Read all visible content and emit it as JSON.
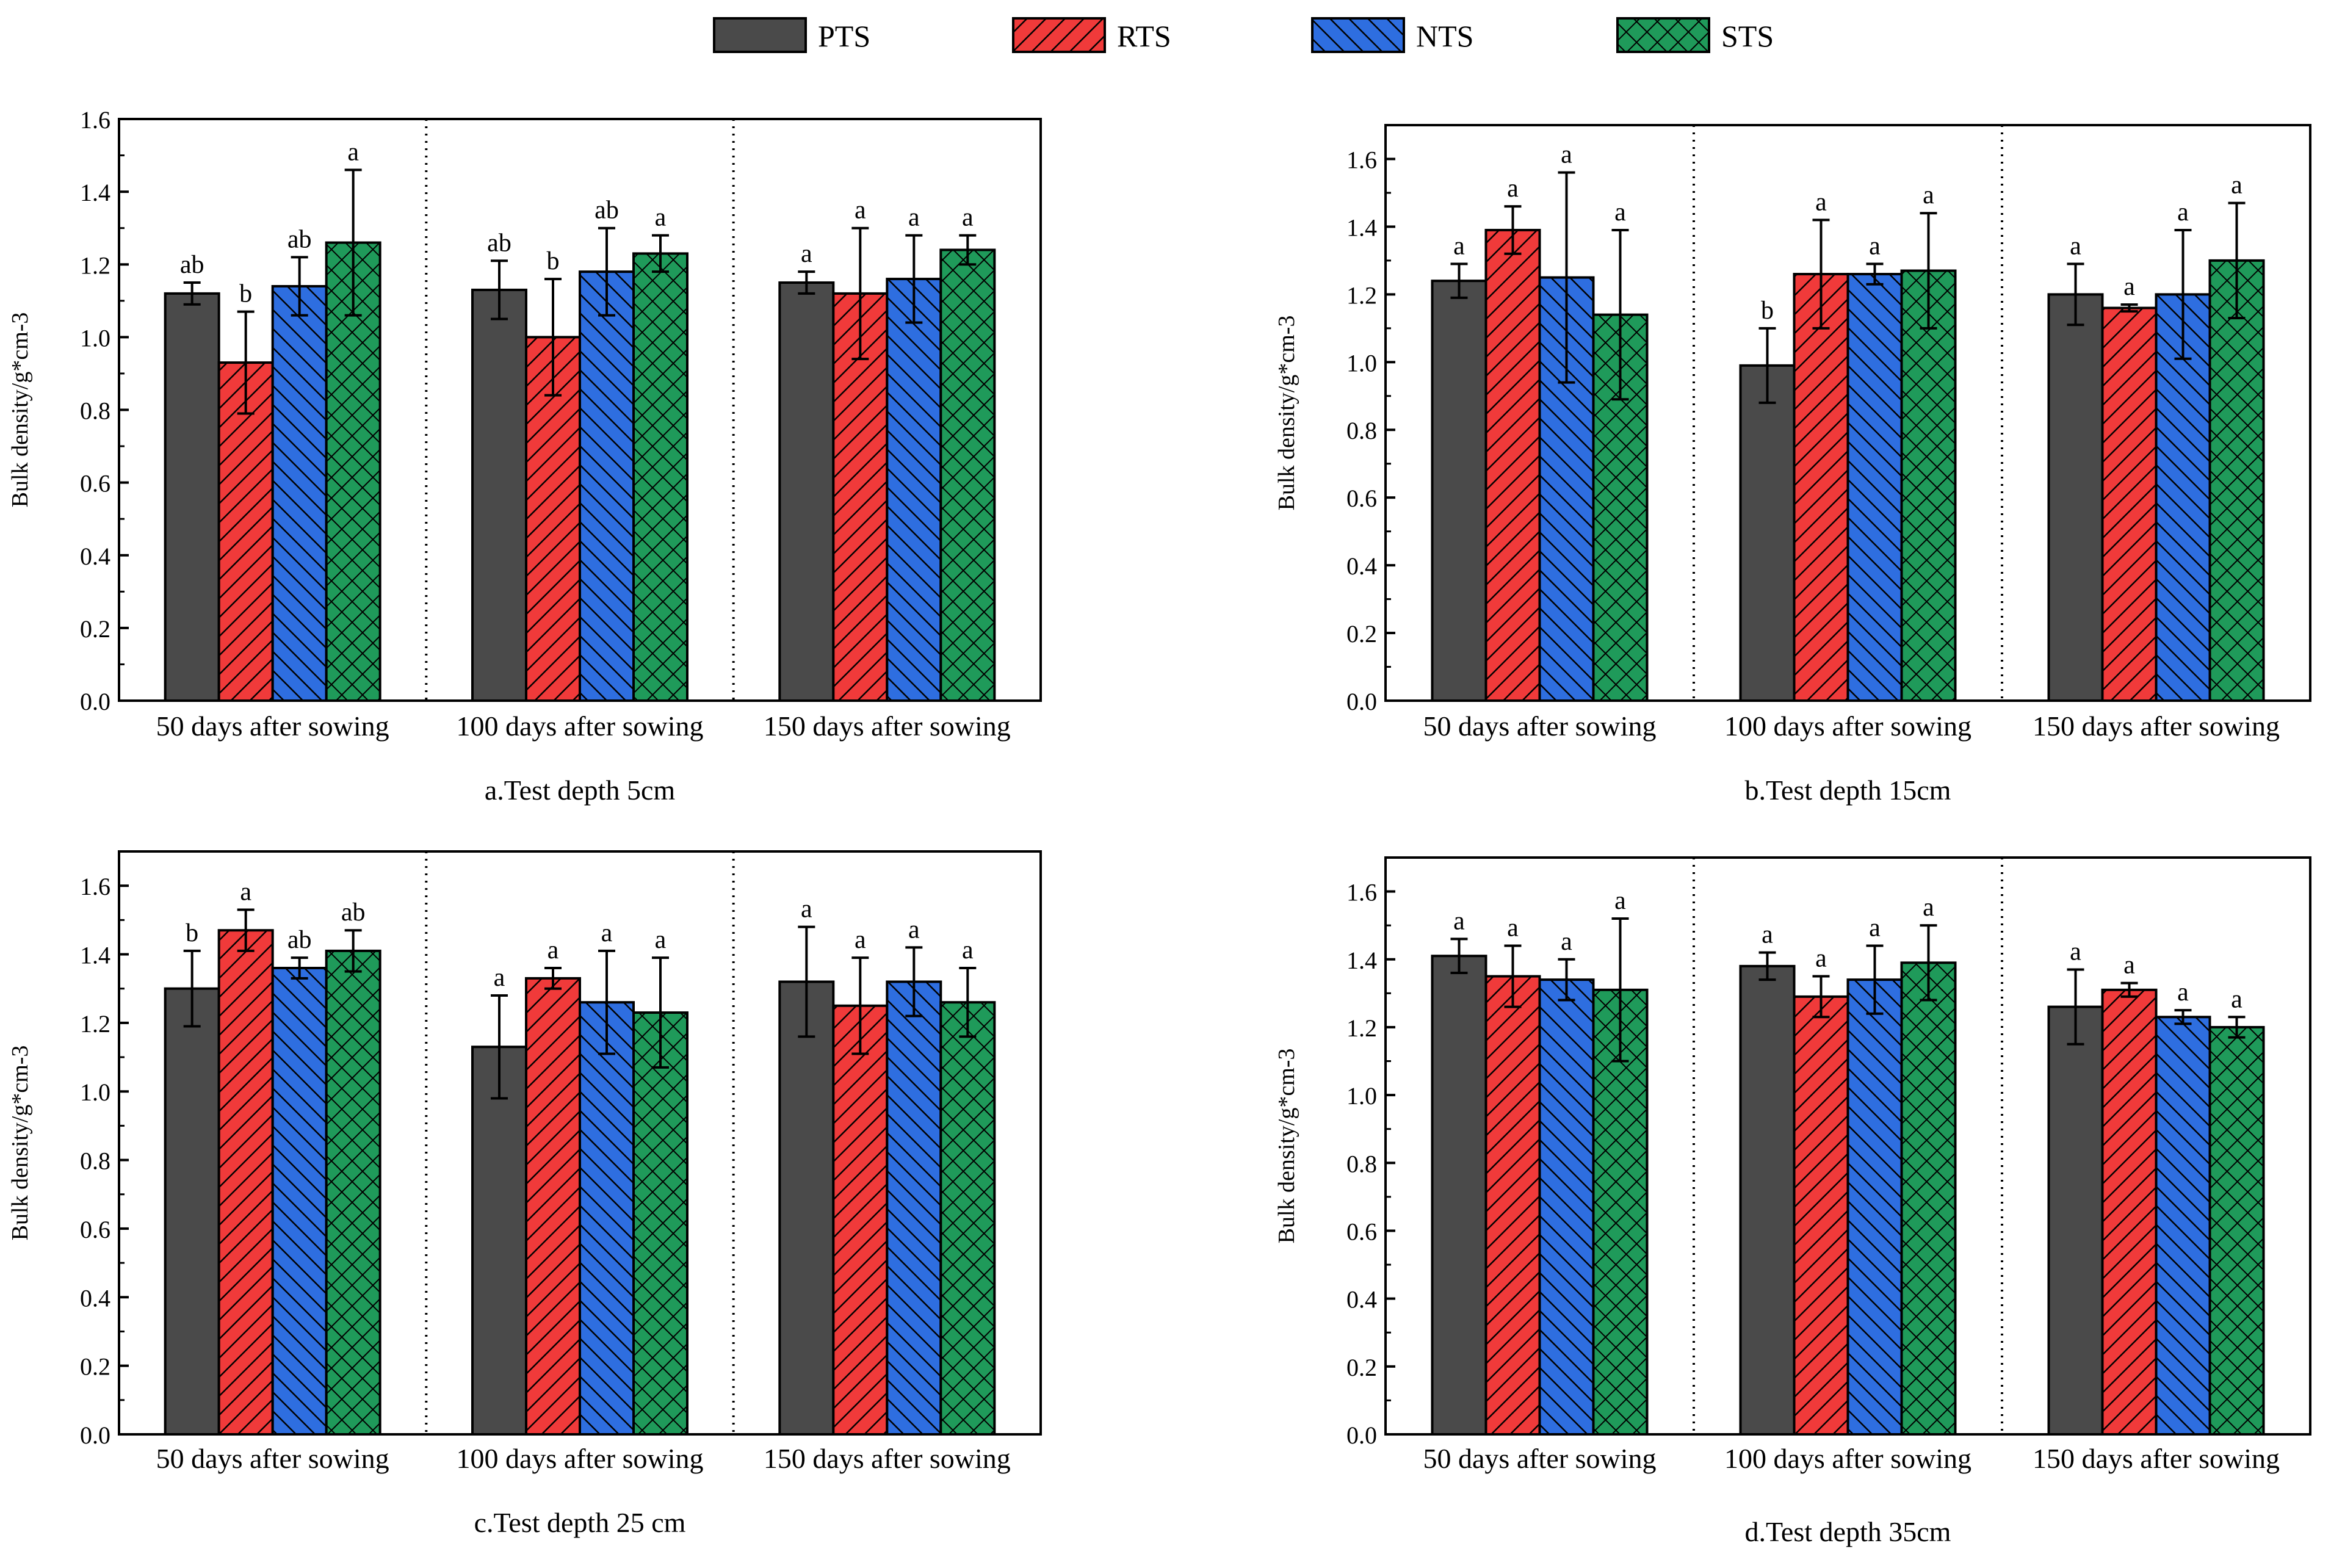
{
  "legend": {
    "position": "top-center",
    "items": [
      {
        "label": "PTS",
        "color": "#4a4a4a",
        "pattern": "solid"
      },
      {
        "label": "RTS",
        "color": "#f03a3a",
        "pattern": "diag-right"
      },
      {
        "label": "NTS",
        "color": "#2e6ee0",
        "pattern": "diag-left"
      },
      {
        "label": "STS",
        "color": "#1f9a5a",
        "pattern": "cross"
      }
    ]
  },
  "chart_data": [
    {
      "type": "bar",
      "title": "a.Test depth 5cm",
      "ylabel": "Bulk density/g*cm-3",
      "ylim": [
        0,
        1.6
      ],
      "yticks": [
        "0.0",
        "0.2",
        "0.4",
        "0.6",
        "0.8",
        "1.0",
        "1.2",
        "1.4",
        "1.6"
      ],
      "categories": [
        "50 days after sowing",
        "100 days after sowing",
        "150 days after sowing"
      ],
      "series": [
        {
          "name": "PTS",
          "values": [
            1.12,
            1.13,
            1.15
          ],
          "errors": [
            0.03,
            0.08,
            0.03
          ],
          "labels": [
            "ab",
            "ab",
            "a"
          ]
        },
        {
          "name": "RTS",
          "values": [
            0.93,
            1.0,
            1.12
          ],
          "errors": [
            0.14,
            0.16,
            0.18
          ],
          "labels": [
            "b",
            "b",
            "a"
          ]
        },
        {
          "name": "NTS",
          "values": [
            1.14,
            1.18,
            1.16
          ],
          "errors": [
            0.08,
            0.12,
            0.12
          ],
          "labels": [
            "ab",
            "ab",
            "a"
          ]
        },
        {
          "name": "STS",
          "values": [
            1.26,
            1.23,
            1.24
          ],
          "errors": [
            0.2,
            0.05,
            0.04
          ],
          "labels": [
            "a",
            "a",
            "a"
          ]
        }
      ]
    },
    {
      "type": "bar",
      "title": "b.Test depth 15cm",
      "ylabel": "Bulk density/g*cm-3",
      "ylim": [
        0,
        1.7
      ],
      "yticks": [
        "0.0",
        "0.2",
        "0.4",
        "0.6",
        "0.8",
        "1.0",
        "1.2",
        "1.4",
        "1.6"
      ],
      "categories": [
        "50 days after sowing",
        "100 days after sowing",
        "150 days after sowing"
      ],
      "series": [
        {
          "name": "PTS",
          "values": [
            1.24,
            0.99,
            1.2
          ],
          "errors": [
            0.05,
            0.11,
            0.09
          ],
          "labels": [
            "a",
            "b",
            "a"
          ]
        },
        {
          "name": "RTS",
          "values": [
            1.39,
            1.26,
            1.16
          ],
          "errors": [
            0.07,
            0.16,
            0.01
          ],
          "labels": [
            "a",
            "a",
            "a"
          ]
        },
        {
          "name": "NTS",
          "values": [
            1.25,
            1.26,
            1.2
          ],
          "errors": [
            0.31,
            0.03,
            0.19
          ],
          "labels": [
            "a",
            "a",
            "a"
          ]
        },
        {
          "name": "STS",
          "values": [
            1.14,
            1.27,
            1.3
          ],
          "errors": [
            0.25,
            0.17,
            0.17
          ],
          "labels": [
            "a",
            "a",
            "a"
          ]
        }
      ]
    },
    {
      "type": "bar",
      "title": "c.Test depth 25 cm",
      "ylabel": "Bulk density/g*cm-3",
      "ylim": [
        0,
        1.7
      ],
      "yticks": [
        "0.0",
        "0.2",
        "0.4",
        "0.6",
        "0.8",
        "1.0",
        "1.2",
        "1.4",
        "1.6"
      ],
      "categories": [
        "50 days after sowing",
        "100 days after sowing",
        "150 days after sowing"
      ],
      "series": [
        {
          "name": "PTS",
          "values": [
            1.3,
            1.13,
            1.32
          ],
          "errors": [
            0.11,
            0.15,
            0.16
          ],
          "labels": [
            "b",
            "a",
            "a"
          ]
        },
        {
          "name": "RTS",
          "values": [
            1.47,
            1.33,
            1.25
          ],
          "errors": [
            0.06,
            0.03,
            0.14
          ],
          "labels": [
            "a",
            "a",
            "a"
          ]
        },
        {
          "name": "NTS",
          "values": [
            1.36,
            1.26,
            1.32
          ],
          "errors": [
            0.03,
            0.15,
            0.1
          ],
          "labels": [
            "ab",
            "a",
            "a"
          ]
        },
        {
          "name": "STS",
          "values": [
            1.41,
            1.23,
            1.26
          ],
          "errors": [
            0.06,
            0.16,
            0.1
          ],
          "labels": [
            "ab",
            "a",
            "a"
          ]
        }
      ]
    },
    {
      "type": "bar",
      "title": "d.Test depth 35cm",
      "ylabel": "Bulk density/g*cm-3",
      "ylim": [
        0,
        1.7
      ],
      "yticks": [
        "0.0",
        "0.2",
        "0.4",
        "0.6",
        "0.8",
        "1.0",
        "1.2",
        "1.4",
        "1.6"
      ],
      "categories": [
        "50 days after sowing",
        "100 days after sowing",
        "150 days after sowing"
      ],
      "series": [
        {
          "name": "PTS",
          "values": [
            1.41,
            1.38,
            1.26
          ],
          "errors": [
            0.05,
            0.04,
            0.11
          ],
          "labels": [
            "a",
            "a",
            "a"
          ]
        },
        {
          "name": "RTS",
          "values": [
            1.35,
            1.29,
            1.31
          ],
          "errors": [
            0.09,
            0.06,
            0.02
          ],
          "labels": [
            "a",
            "a",
            "a"
          ]
        },
        {
          "name": "NTS",
          "values": [
            1.34,
            1.34,
            1.23
          ],
          "errors": [
            0.06,
            0.1,
            0.02
          ],
          "labels": [
            "a",
            "a",
            "a"
          ]
        },
        {
          "name": "STS",
          "values": [
            1.31,
            1.39,
            1.2
          ],
          "errors": [
            0.21,
            0.11,
            0.03
          ],
          "labels": [
            "a",
            "a",
            "a"
          ]
        }
      ]
    }
  ]
}
